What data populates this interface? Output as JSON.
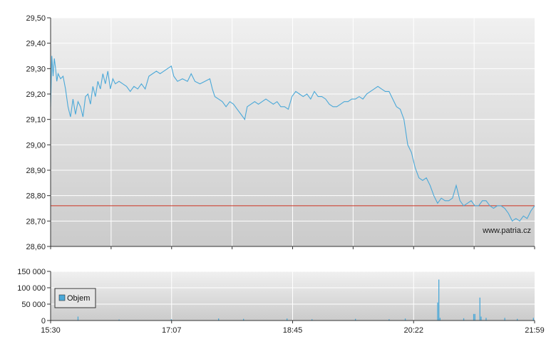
{
  "watermark": "www.patria.cz",
  "legend": {
    "volume_label": "Objem"
  },
  "colors": {
    "price_line": "#4aa8d8",
    "reference_line": "#cc3322",
    "volume_bars": "#4aa8d8",
    "grid": "#ffffff",
    "plot_bg_top": "#f0f0f0",
    "plot_bg_bottom": "#cbcbcb"
  },
  "chart_data": [
    {
      "type": "line",
      "title": "",
      "xlabel": "",
      "ylabel": "",
      "x_ticks": [
        "15:30",
        "17:07",
        "18:45",
        "20:22",
        "21:59"
      ],
      "y_ticks": [
        "28,60",
        "28,70",
        "28,80",
        "28,90",
        "29,00",
        "29,10",
        "29,20",
        "29,30",
        "29,40",
        "29,50"
      ],
      "ylim": [
        28.6,
        29.5
      ],
      "xlim": [
        "15:30",
        "21:59"
      ],
      "grid": true,
      "reference_line": 28.76,
      "series": [
        {
          "values": [
            [
              "15:30",
              29.15
            ],
            [
              "15:31",
              29.35
            ],
            [
              "15:32",
              29.27
            ],
            [
              "15:33",
              29.34
            ],
            [
              "15:34",
              29.3
            ],
            [
              "15:35",
              29.25
            ],
            [
              "15:36",
              29.28
            ],
            [
              "15:38",
              29.26
            ],
            [
              "15:40",
              29.27
            ],
            [
              "15:42",
              29.22
            ],
            [
              "15:44",
              29.15
            ],
            [
              "15:46",
              29.11
            ],
            [
              "15:48",
              29.18
            ],
            [
              "15:50",
              29.12
            ],
            [
              "15:52",
              29.17
            ],
            [
              "15:54",
              29.15
            ],
            [
              "15:56",
              29.11
            ],
            [
              "15:58",
              29.19
            ],
            [
              "16:00",
              29.2
            ],
            [
              "16:02",
              29.16
            ],
            [
              "16:04",
              29.23
            ],
            [
              "16:06",
              29.19
            ],
            [
              "16:08",
              29.25
            ],
            [
              "16:10",
              29.22
            ],
            [
              "16:12",
              29.28
            ],
            [
              "16:14",
              29.24
            ],
            [
              "16:16",
              29.29
            ],
            [
              "16:18",
              29.22
            ],
            [
              "16:20",
              29.26
            ],
            [
              "16:22",
              29.24
            ],
            [
              "16:25",
              29.25
            ],
            [
              "16:28",
              29.24
            ],
            [
              "16:31",
              29.23
            ],
            [
              "16:34",
              29.21
            ],
            [
              "16:37",
              29.23
            ],
            [
              "16:40",
              29.22
            ],
            [
              "16:43",
              29.24
            ],
            [
              "16:46",
              29.22
            ],
            [
              "16:49",
              29.27
            ],
            [
              "16:52",
              29.28
            ],
            [
              "16:55",
              29.29
            ],
            [
              "16:58",
              29.28
            ],
            [
              "17:01",
              29.29
            ],
            [
              "17:04",
              29.3
            ],
            [
              "17:07",
              29.31
            ],
            [
              "17:09",
              29.27
            ],
            [
              "17:12",
              29.25
            ],
            [
              "17:16",
              29.26
            ],
            [
              "17:20",
              29.25
            ],
            [
              "17:23",
              29.28
            ],
            [
              "17:26",
              29.25
            ],
            [
              "17:30",
              29.24
            ],
            [
              "17:34",
              29.25
            ],
            [
              "17:38",
              29.26
            ],
            [
              "17:40",
              29.22
            ],
            [
              "17:42",
              29.19
            ],
            [
              "17:45",
              29.18
            ],
            [
              "17:48",
              29.17
            ],
            [
              "17:51",
              29.15
            ],
            [
              "17:54",
              29.17
            ],
            [
              "17:57",
              29.16
            ],
            [
              "18:00",
              29.14
            ],
            [
              "18:03",
              29.12
            ],
            [
              "18:06",
              29.1
            ],
            [
              "18:08",
              29.15
            ],
            [
              "18:11",
              29.16
            ],
            [
              "18:14",
              29.17
            ],
            [
              "18:17",
              29.16
            ],
            [
              "18:20",
              29.17
            ],
            [
              "18:23",
              29.18
            ],
            [
              "18:26",
              29.17
            ],
            [
              "18:29",
              29.16
            ],
            [
              "18:32",
              29.17
            ],
            [
              "18:35",
              29.15
            ],
            [
              "18:38",
              29.15
            ],
            [
              "18:41",
              29.14
            ],
            [
              "18:44",
              29.19
            ],
            [
              "18:47",
              29.21
            ],
            [
              "18:50",
              29.2
            ],
            [
              "18:53",
              29.19
            ],
            [
              "18:56",
              29.2
            ],
            [
              "18:59",
              29.18
            ],
            [
              "19:02",
              29.21
            ],
            [
              "19:05",
              29.19
            ],
            [
              "19:08",
              29.19
            ],
            [
              "19:11",
              29.18
            ],
            [
              "19:14",
              29.16
            ],
            [
              "19:17",
              29.15
            ],
            [
              "19:20",
              29.15
            ],
            [
              "19:23",
              29.16
            ],
            [
              "19:26",
              29.17
            ],
            [
              "19:29",
              29.17
            ],
            [
              "19:32",
              29.18
            ],
            [
              "19:35",
              29.18
            ],
            [
              "19:38",
              29.19
            ],
            [
              "19:41",
              29.18
            ],
            [
              "19:44",
              29.2
            ],
            [
              "19:47",
              29.21
            ],
            [
              "19:50",
              29.22
            ],
            [
              "19:53",
              29.23
            ],
            [
              "19:56",
              29.22
            ],
            [
              "19:59",
              29.21
            ],
            [
              "20:02",
              29.21
            ],
            [
              "20:05",
              29.18
            ],
            [
              "20:08",
              29.15
            ],
            [
              "20:11",
              29.14
            ],
            [
              "20:14",
              29.1
            ],
            [
              "20:17",
              29.0
            ],
            [
              "20:20",
              28.97
            ],
            [
              "20:23",
              28.91
            ],
            [
              "20:26",
              28.87
            ],
            [
              "20:29",
              28.86
            ],
            [
              "20:32",
              28.87
            ],
            [
              "20:35",
              28.84
            ],
            [
              "20:38",
              28.8
            ],
            [
              "20:41",
              28.77
            ],
            [
              "20:44",
              28.79
            ],
            [
              "20:47",
              28.78
            ],
            [
              "20:50",
              28.78
            ],
            [
              "20:53",
              28.79
            ],
            [
              "20:56",
              28.84
            ],
            [
              "20:59",
              28.78
            ],
            [
              "21:02",
              28.76
            ],
            [
              "21:05",
              28.77
            ],
            [
              "21:08",
              28.78
            ],
            [
              "21:11",
              28.76
            ],
            [
              "21:14",
              28.76
            ],
            [
              "21:17",
              28.78
            ],
            [
              "21:20",
              28.78
            ],
            [
              "21:23",
              28.76
            ],
            [
              "21:26",
              28.75
            ],
            [
              "21:29",
              28.76
            ],
            [
              "21:32",
              28.76
            ],
            [
              "21:35",
              28.75
            ],
            [
              "21:38",
              28.73
            ],
            [
              "21:41",
              28.7
            ],
            [
              "21:44",
              28.71
            ],
            [
              "21:47",
              28.7
            ],
            [
              "21:50",
              28.72
            ],
            [
              "21:53",
              28.71
            ],
            [
              "21:56",
              28.74
            ],
            [
              "21:59",
              28.76
            ]
          ]
        }
      ]
    },
    {
      "type": "bar",
      "title": "",
      "xlabel": "",
      "ylabel": "",
      "x_ticks": [
        "15:30",
        "17:07",
        "18:45",
        "20:22",
        "21:59"
      ],
      "y_ticks": [
        "0",
        "50 000",
        "100 000",
        "150 000"
      ],
      "ylim": [
        0,
        150000
      ],
      "xlim": [
        "15:30",
        "21:59"
      ],
      "grid": true,
      "legend": "left",
      "series": [
        {
          "name": "Objem",
          "values": [
            [
              "15:52",
              12000
            ],
            [
              "16:25",
              3000
            ],
            [
              "17:07",
              4000
            ],
            [
              "17:45",
              6000
            ],
            [
              "18:05",
              5000
            ],
            [
              "18:40",
              6000
            ],
            [
              "19:00",
              4000
            ],
            [
              "19:35",
              5000
            ],
            [
              "20:02",
              4000
            ],
            [
              "20:15",
              6000
            ],
            [
              "20:41",
              55000
            ],
            [
              "20:42",
              125000
            ],
            [
              "20:43",
              8000
            ],
            [
              "21:02",
              7000
            ],
            [
              "21:10",
              20000
            ],
            [
              "21:11",
              20000
            ],
            [
              "21:15",
              70000
            ],
            [
              "21:16",
              12000
            ],
            [
              "21:20",
              8000
            ],
            [
              "21:35",
              8000
            ],
            [
              "21:45",
              5000
            ],
            [
              "21:58",
              8000
            ]
          ]
        }
      ]
    }
  ]
}
